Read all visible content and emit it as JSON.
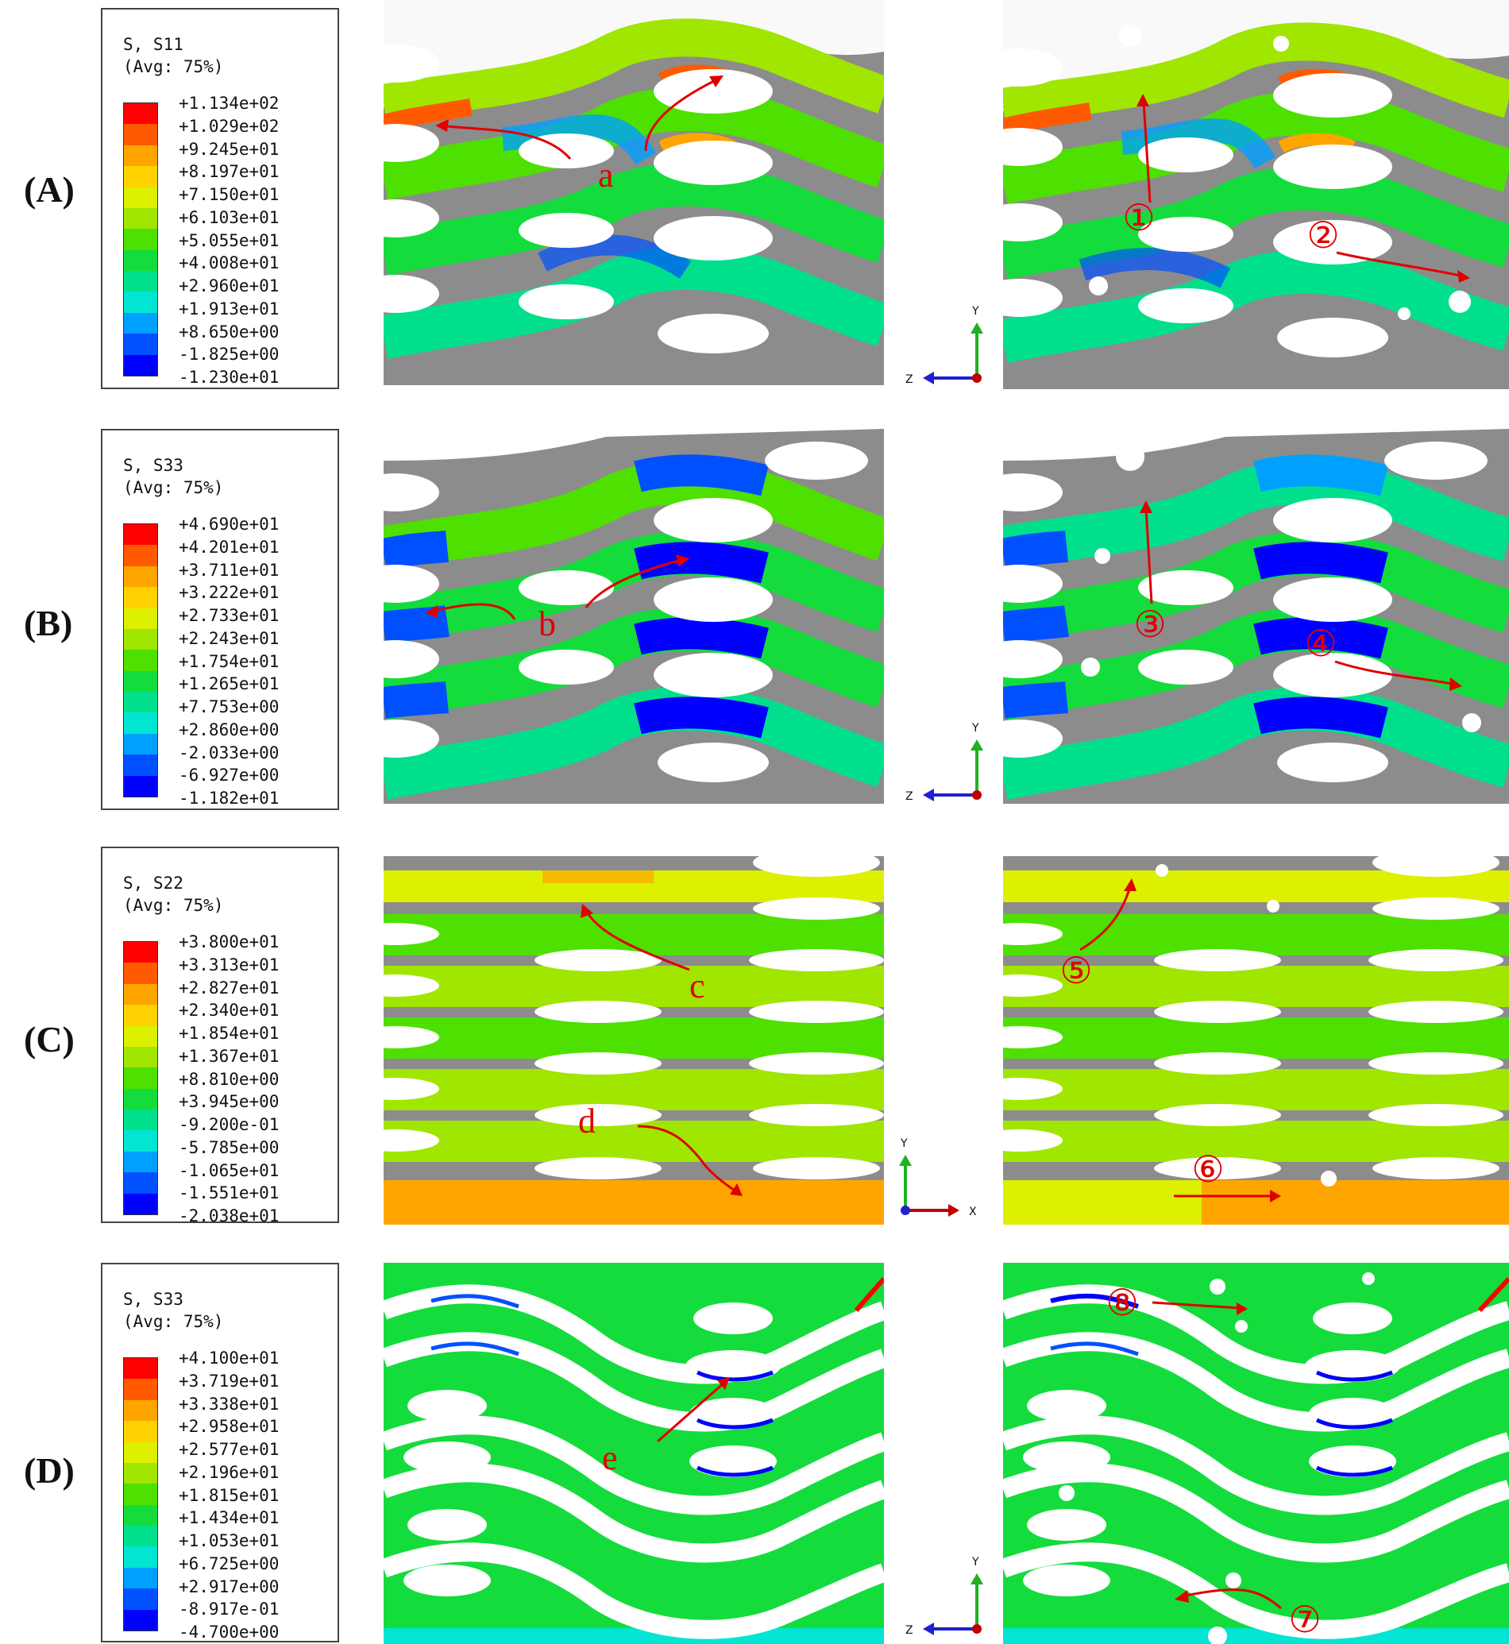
{
  "panels": [
    {
      "label": "(A)",
      "legend": {
        "title1": "S, S11",
        "title2": "(Avg: 75%)",
        "values": [
          "+1.134e+02",
          "+1.029e+02",
          "+9.245e+01",
          "+8.197e+01",
          "+7.150e+01",
          "+6.103e+01",
          "+5.055e+01",
          "+4.008e+01",
          "+2.960e+01",
          "+1.913e+01",
          "+8.650e+00",
          "-1.825e+00",
          "-1.230e+01"
        ]
      },
      "axes": {
        "vertical": "Y",
        "horizontal": "Z"
      },
      "annotations": {
        "left": [
          "a"
        ],
        "right": [
          "①",
          "②"
        ]
      }
    },
    {
      "label": "(B)",
      "legend": {
        "title1": "S, S33",
        "title2": "(Avg: 75%)",
        "values": [
          "+4.690e+01",
          "+4.201e+01",
          "+3.711e+01",
          "+3.222e+01",
          "+2.733e+01",
          "+2.243e+01",
          "+1.754e+01",
          "+1.265e+01",
          "+7.753e+00",
          "+2.860e+00",
          "-2.033e+00",
          "-6.927e+00",
          "-1.182e+01"
        ]
      },
      "axes": {
        "vertical": "Y",
        "horizontal": "Z"
      },
      "annotations": {
        "left": [
          "b"
        ],
        "right": [
          "③",
          "④"
        ]
      }
    },
    {
      "label": "(C)",
      "legend": {
        "title1": "S, S22",
        "title2": "(Avg: 75%)",
        "values": [
          "+3.800e+01",
          "+3.313e+01",
          "+2.827e+01",
          "+2.340e+01",
          "+1.854e+01",
          "+1.367e+01",
          "+8.810e+00",
          "+3.945e+00",
          "-9.200e-01",
          "-5.785e+00",
          "-1.065e+01",
          "-1.551e+01",
          "-2.038e+01"
        ]
      },
      "axes": {
        "vertical": "Y",
        "horizontal": "X"
      },
      "annotations": {
        "left": [
          "c",
          "d"
        ],
        "right": [
          "⑤",
          "⑥"
        ]
      }
    },
    {
      "label": "(D)",
      "legend": {
        "title1": "S, S33",
        "title2": "(Avg: 75%)",
        "values": [
          "+4.100e+01",
          "+3.719e+01",
          "+3.338e+01",
          "+2.958e+01",
          "+2.577e+01",
          "+2.196e+01",
          "+1.815e+01",
          "+1.434e+01",
          "+1.053e+01",
          "+6.725e+00",
          "+2.917e+00",
          "-8.917e-01",
          "-4.700e+00"
        ]
      },
      "axes": {
        "vertical": "Y",
        "horizontal": "Z"
      },
      "annotations": {
        "left": [
          "e"
        ],
        "right": [
          "⑧",
          "⑦"
        ]
      }
    }
  ],
  "colors": {
    "colormap": [
      "#ff0000",
      "#ff5a00",
      "#ffa500",
      "#ffd200",
      "#dcf000",
      "#a0e600",
      "#4ee000",
      "#14dc3c",
      "#00e08c",
      "#00e6d2",
      "#00a0ff",
      "#0050ff",
      "#0000ff"
    ],
    "mesh_gray": "#8c8c8c",
    "annotation_red": "#e00000",
    "axis_y": "#20b020",
    "axis_h": "#2020d0",
    "axis_x": "#c00000"
  }
}
